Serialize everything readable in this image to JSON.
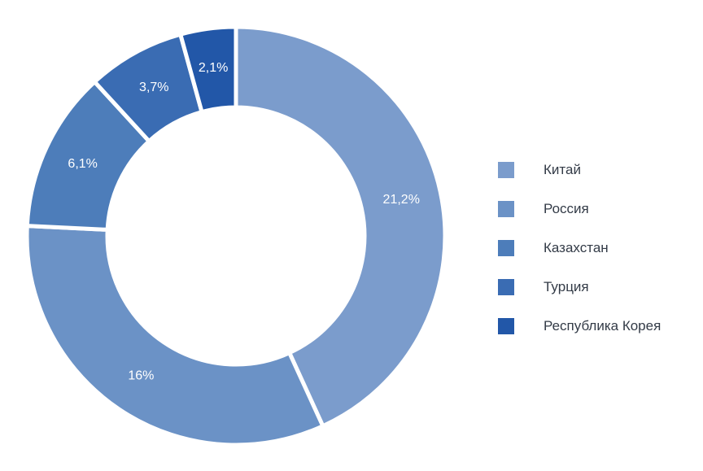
{
  "chart_data": {
    "type": "pie",
    "categories": [
      "Китай",
      "Россия",
      "Казахстан",
      "Турция",
      "Республика Корея"
    ],
    "values": [
      21.2,
      16,
      6.1,
      3.7,
      2.1
    ],
    "labels": [
      "21,2%",
      "16%",
      "6,1%",
      "3,7%",
      "2,1%"
    ],
    "colors": [
      "#7b9ccc",
      "#6b92c6",
      "#4d7dba",
      "#3a6cb3",
      "#2257a8"
    ],
    "donut": true,
    "legend_position": "right"
  }
}
